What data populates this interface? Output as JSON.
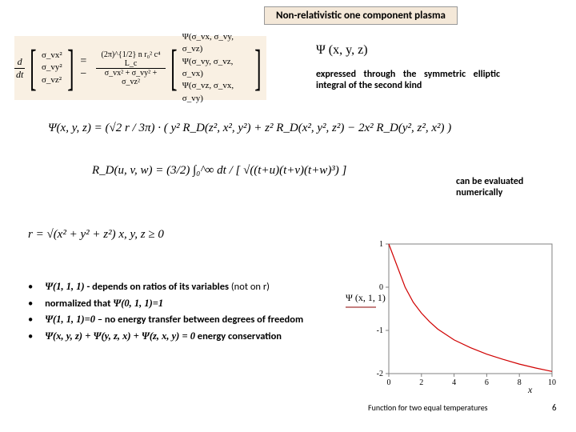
{
  "title": "Non-relativistic one component plasma",
  "psi_label": "Ψ (x, y, z)",
  "desc1": "expressed through the symmetric elliptic integral of the second kind",
  "eq1": {
    "lhs_col": [
      "σ_vx²",
      "σ_vy²",
      "σ_vz²"
    ],
    "prefactor": "(2π)^{1/2} n r₀² c⁴ L_c",
    "denom": "σ_vx² + σ_vy² + σ_vz²",
    "rhs_col": [
      "Ψ(σ_vx, σ_vy, σ_vz)",
      "Ψ(σ_vy, σ_vz, σ_vx)",
      "Ψ(σ_vz, σ_vx, σ_vy)"
    ]
  },
  "eq2": "Ψ(x, y, z) = (√2 r / 3π) · ( y² R_D(z², x², y²) + z² R_D(x², y², z²) − 2x² R_D(y², z², x²) )",
  "eq3": "R_D(u, v, w) = (3/2) ∫₀^∞ dt / [ √((t+u)(t+v)(t+w)³) ]",
  "desc2": "can be evaluated numerically",
  "eq4": "r = √(x² + y² + z²)      x, y, z ≥ 0",
  "bullets": {
    "b1_a": "Ψ(1, 1, 1)",
    "b1_b": " - depends on  ratios of its variables",
    "b1_c": " (not on r)",
    "b2_a": "normalized that ",
    "b2_b": "Ψ(0, 1, 1)=1",
    "b3_a": "Ψ(1, 1, 1)=0",
    "b3_b": " – no energy transfer between degrees of freedom",
    "b4_a": "Ψ(x, y, z) + Ψ(y, z, x) + Ψ(z, x, y) = 0",
    "b4_b": " energy conservation"
  },
  "chart": {
    "xlabel": "x",
    "ylabel": "Ψ (x, 1, 1)",
    "xlim": [
      0,
      10
    ],
    "ylim": [
      -2,
      1
    ],
    "xticks": [
      0,
      2,
      4,
      6,
      8,
      10
    ],
    "yticks": [
      -2,
      -1,
      0,
      1
    ],
    "line_color": "#d00000",
    "axis_color": "#808080",
    "label_color": "#000000",
    "label_legend_color": "#8b0000",
    "line_width": 1.2,
    "data_x": [
      0,
      0.5,
      1,
      1.5,
      2,
      2.5,
      3,
      4,
      5,
      6,
      7,
      8,
      9,
      10
    ],
    "data_y": [
      1,
      0.5,
      0,
      -0.35,
      -0.6,
      -0.8,
      -0.97,
      -1.22,
      -1.4,
      -1.55,
      -1.67,
      -1.78,
      -1.87,
      -1.95
    ]
  },
  "chart_caption": "Function for two equal temperatures",
  "pagenum": "6"
}
